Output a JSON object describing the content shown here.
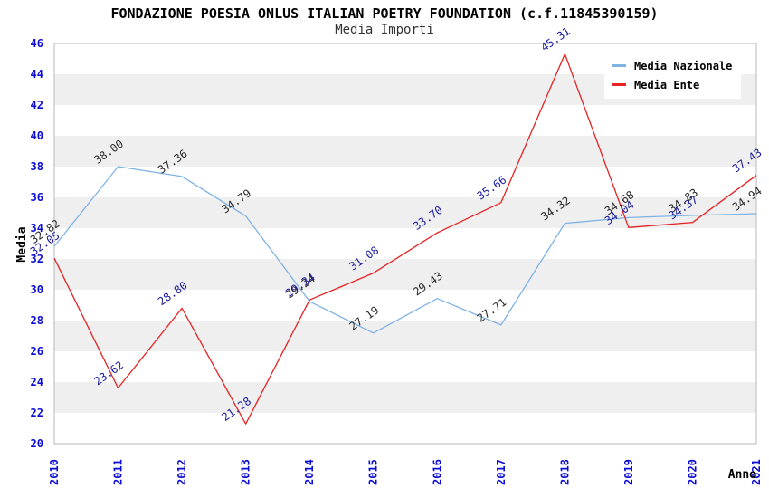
{
  "header": {
    "title": "FONDAZIONE POESIA ONLUS ITALIAN POETRY FOUNDATION (c.f.11845390159)",
    "subtitle": "Media Importi"
  },
  "legend": {
    "items": [
      {
        "label": "Media Nazionale",
        "color": "#7fb2e5"
      },
      {
        "label": "Media Ente",
        "color": "#e62222"
      }
    ]
  },
  "chart_data": {
    "type": "line",
    "title": "FONDAZIONE POESIA ONLUS ITALIAN POETRY FOUNDATION (c.f.11845390159)",
    "subtitle": "Media Importi",
    "categories": [
      "2010",
      "2011",
      "2012",
      "2013",
      "2014",
      "2015",
      "2016",
      "2017",
      "2018",
      "2019",
      "2020",
      "2021"
    ],
    "series": [
      {
        "name": "Media Nazionale",
        "color": "#7fb2e5",
        "label_color": "#2a2a2a",
        "values": [
          32.82,
          38.0,
          37.36,
          34.79,
          29.24,
          27.19,
          29.43,
          27.71,
          34.32,
          34.68,
          34.83,
          34.94
        ]
      },
      {
        "name": "Media Ente",
        "color": "#e62222",
        "label_color": "#1c1c9e",
        "values": [
          32.05,
          23.62,
          28.8,
          21.28,
          29.34,
          31.08,
          33.7,
          35.66,
          45.31,
          34.04,
          34.37,
          37.43
        ]
      }
    ],
    "xlabel": "Anno",
    "ylabel": "Media",
    "ylim": [
      20,
      46
    ],
    "ytick_step": 2,
    "tick_label_color": "#0b0bd6",
    "plot_band_colors": [
      "#ffffff",
      "#efefef"
    ],
    "plot_border_color": "#b9b9b9",
    "legend_position": "top-right",
    "grid": "alternating-bands",
    "value_label_decimals": 2
  }
}
